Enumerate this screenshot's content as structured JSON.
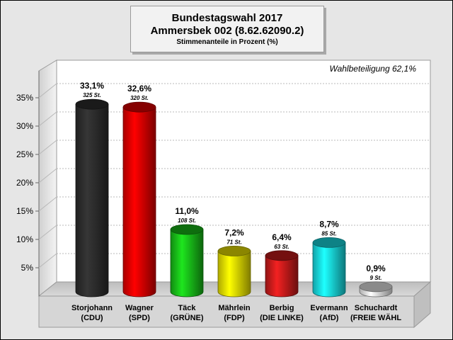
{
  "header": {
    "title_line1": "Bundestagswahl 2017",
    "title_line2": "Ammersbek 002 (8.62.62090.2)",
    "subtitle": "Stimmenanteile in Prozent (%)"
  },
  "turnout_label": "Wahlbeteiligung 62,1%",
  "chart_data": {
    "type": "bar",
    "title": "Bundestagswahl 2017",
    "ylim": [
      0,
      35
    ],
    "yticks": [
      5,
      10,
      15,
      20,
      25,
      30,
      35
    ],
    "ytick_labels": [
      "5%",
      "10%",
      "15%",
      "20%",
      "25%",
      "30%",
      "35%"
    ],
    "grid": true,
    "categories": [
      {
        "name": "Storjohann",
        "party": "(CDU)"
      },
      {
        "name": "Wagner",
        "party": "(SPD)"
      },
      {
        "name": "Täck",
        "party": "(GRÜNE)"
      },
      {
        "name": "Mährlein",
        "party": "(FDP)"
      },
      {
        "name": "Berbig",
        "party": "(DIE LINKE)"
      },
      {
        "name": "Evermann",
        "party": "(AfD)"
      },
      {
        "name": "Schuchardt",
        "party": "(FREIE WÄHL"
      }
    ],
    "values": [
      33.1,
      32.6,
      11.0,
      7.2,
      6.4,
      8.7,
      0.9
    ],
    "value_labels": [
      "33,1%",
      "32,6%",
      "11,0%",
      "7,2%",
      "6,4%",
      "8,7%",
      "0,9%"
    ],
    "votes_labels": [
      "325 St.",
      "320 St.",
      "108 St.",
      "71 St.",
      "63 St.",
      "85 St.",
      "9 St."
    ],
    "colors": [
      "#2b2b2b",
      "#e00000",
      "#18b818",
      "#e8e000",
      "#c21a1a",
      "#18d8e0",
      "#e6e6e6"
    ]
  }
}
